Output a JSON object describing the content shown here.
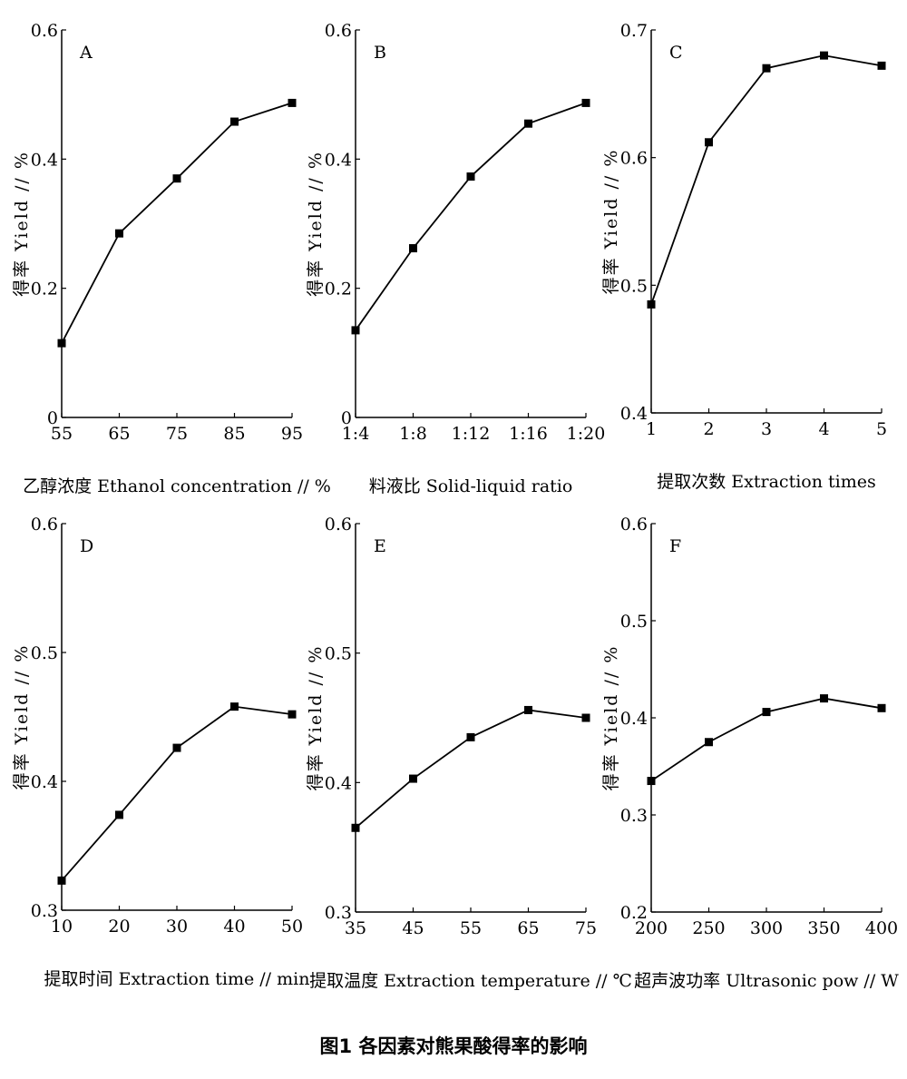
{
  "caption": "图1  各因素对熊果酸得率的影响",
  "chart_data": [
    {
      "type": "line",
      "label": "A",
      "ylabel": "得率 Yield // %",
      "xlabel": "乙醇浓度 Ethanol concentration // %",
      "categories": [
        "55",
        "65",
        "75",
        "85",
        "95"
      ],
      "values": [
        0.115,
        0.285,
        0.37,
        0.458,
        0.487
      ],
      "ylim": [
        0,
        0.6
      ],
      "yticks": [
        "0",
        "0.2",
        "0.4",
        "0.6"
      ],
      "ytick_values": [
        0,
        0.2,
        0.4,
        0.6
      ],
      "grid": false,
      "legend": "none"
    },
    {
      "type": "line",
      "label": "B",
      "ylabel": "得率 Yield // %",
      "xlabel": "料液比 Solid-liquid ratio",
      "categories": [
        "1:4",
        "1:8",
        "1:12",
        "1:16",
        "1:20"
      ],
      "values": [
        0.135,
        0.262,
        0.373,
        0.455,
        0.487
      ],
      "ylim": [
        0,
        0.6
      ],
      "yticks": [
        "0",
        "0.2",
        "0.4",
        "0.6"
      ],
      "ytick_values": [
        0,
        0.2,
        0.4,
        0.6
      ],
      "grid": false,
      "legend": "none"
    },
    {
      "type": "line",
      "label": "C",
      "ylabel": "得率 Yield // %",
      "xlabel": "提取次数 Extraction times",
      "categories": [
        "1",
        "2",
        "3",
        "4",
        "5"
      ],
      "values": [
        0.485,
        0.612,
        0.67,
        0.68,
        0.672
      ],
      "ylim": [
        0.4,
        0.7
      ],
      "yticks": [
        "0.4",
        "0.5",
        "0.6",
        "0.7"
      ],
      "ytick_values": [
        0.4,
        0.5,
        0.6,
        0.7
      ],
      "grid": false,
      "legend": "none"
    },
    {
      "type": "line",
      "label": "D",
      "ylabel": "得率 Yield // %",
      "xlabel": "提取时间 Extraction time // min",
      "categories": [
        "10",
        "20",
        "30",
        "40",
        "50"
      ],
      "values": [
        0.323,
        0.374,
        0.426,
        0.458,
        0.452
      ],
      "ylim": [
        0.3,
        0.6
      ],
      "yticks": [
        "0.3",
        "0.4",
        "0.5",
        "0.6"
      ],
      "ytick_values": [
        0.3,
        0.4,
        0.5,
        0.6
      ],
      "grid": false,
      "legend": "none"
    },
    {
      "type": "line",
      "label": "E",
      "ylabel": "得率 Yield // %",
      "xlabel": "提取温度 Extraction temperature // ℃",
      "categories": [
        "35",
        "45",
        "55",
        "65",
        "75"
      ],
      "values": [
        0.365,
        0.403,
        0.435,
        0.456,
        0.45
      ],
      "ylim": [
        0.3,
        0.6
      ],
      "yticks": [
        "0.3",
        "0.4",
        "0.5",
        "0.6"
      ],
      "ytick_values": [
        0.3,
        0.4,
        0.5,
        0.6
      ],
      "grid": false,
      "legend": "none"
    },
    {
      "type": "line",
      "label": "F",
      "ylabel": "得率 Yield // %",
      "xlabel": "超声波功率 Ultrasonic pow // W",
      "categories": [
        "200",
        "250",
        "300",
        "350",
        "400"
      ],
      "values": [
        0.335,
        0.375,
        0.406,
        0.42,
        0.41
      ],
      "ylim": [
        0.2,
        0.6
      ],
      "yticks": [
        "0.2",
        "0.3",
        "0.4",
        "0.5",
        "0.6"
      ],
      "ytick_values": [
        0.2,
        0.3,
        0.4,
        0.5,
        0.6
      ],
      "grid": false,
      "legend": "none"
    }
  ]
}
